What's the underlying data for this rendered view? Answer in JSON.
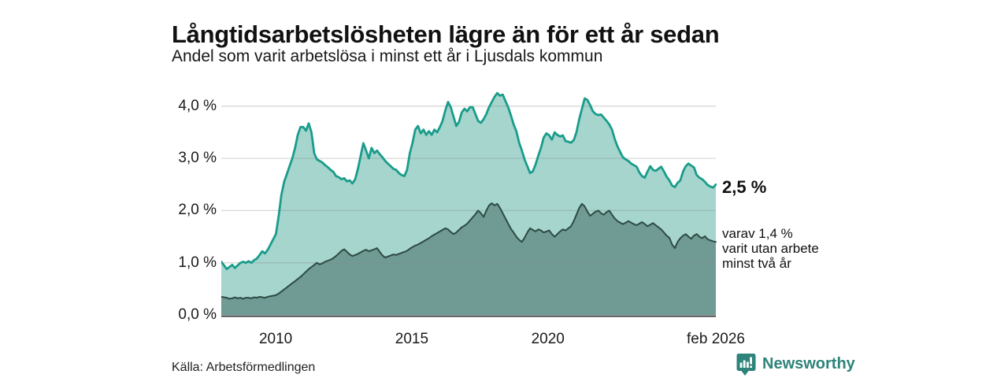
{
  "header": {
    "title": "Långtidsarbetslösheten lägre än för ett år sedan",
    "subtitle": "Andel som varit arbetslösa i minst ett år i Ljusdals kommun"
  },
  "chart_data": {
    "type": "area",
    "title": "Långtidsarbetslösheten lägre än för ett år sedan",
    "subtitle": "Andel som varit arbetslösa i minst ett år i Ljusdals kommun",
    "x_start": 2008.0,
    "x_end": 2026.17,
    "ylim": [
      0,
      4.525
    ],
    "grid": true,
    "y_ticks": [
      {
        "value": 4,
        "label": "4,0 %"
      },
      {
        "value": 3,
        "label": "3,0 %"
      },
      {
        "value": 2,
        "label": "2,0 %"
      },
      {
        "value": 1,
        "label": "1,0 %"
      },
      {
        "value": 0,
        "label": "0,0 %"
      }
    ],
    "x_ticks": [
      {
        "value": 2010,
        "label": "2010"
      },
      {
        "value": 2015,
        "label": "2015"
      },
      {
        "value": 2020,
        "label": "2020"
      },
      {
        "value": 2026.17,
        "label": "feb 2026"
      }
    ],
    "series": [
      {
        "name": "Andel arbetslösa minst ett år",
        "line_color": "#1a9c8b",
        "fill_color": "#a5d5cd",
        "end_value": "2,5 %",
        "values": [
          1.02,
          0.95,
          0.88,
          0.92,
          0.96,
          0.9,
          0.95,
          1.0,
          1.02,
          1.0,
          1.03,
          1.0,
          1.05,
          1.08,
          1.15,
          1.22,
          1.18,
          1.25,
          1.35,
          1.45,
          1.55,
          1.9,
          2.3,
          2.55,
          2.7,
          2.85,
          3.0,
          3.2,
          3.45,
          3.6,
          3.6,
          3.53,
          3.67,
          3.5,
          3.1,
          2.98,
          2.95,
          2.92,
          2.87,
          2.83,
          2.78,
          2.74,
          2.66,
          2.64,
          2.6,
          2.62,
          2.56,
          2.58,
          2.52,
          2.6,
          2.8,
          3.05,
          3.29,
          3.15,
          3.0,
          3.2,
          3.1,
          3.15,
          3.08,
          3.02,
          2.95,
          2.9,
          2.85,
          2.8,
          2.78,
          2.72,
          2.68,
          2.66,
          2.78,
          3.1,
          3.3,
          3.55,
          3.62,
          3.48,
          3.55,
          3.45,
          3.52,
          3.45,
          3.55,
          3.5,
          3.6,
          3.72,
          3.92,
          4.08,
          3.98,
          3.8,
          3.62,
          3.7,
          3.88,
          3.95,
          3.9,
          3.98,
          3.98,
          3.85,
          3.72,
          3.68,
          3.75,
          3.85,
          3.98,
          4.08,
          4.18,
          4.25,
          4.2,
          4.22,
          4.1,
          3.98,
          3.82,
          3.65,
          3.52,
          3.3,
          3.15,
          2.98,
          2.85,
          2.72,
          2.75,
          2.88,
          3.05,
          3.2,
          3.4,
          3.48,
          3.44,
          3.36,
          3.5,
          3.45,
          3.42,
          3.44,
          3.33,
          3.32,
          3.3,
          3.35,
          3.5,
          3.75,
          3.95,
          4.15,
          4.12,
          4.02,
          3.9,
          3.85,
          3.83,
          3.84,
          3.78,
          3.72,
          3.65,
          3.55,
          3.37,
          3.23,
          3.12,
          3.02,
          2.98,
          2.95,
          2.9,
          2.87,
          2.84,
          2.73,
          2.66,
          2.63,
          2.75,
          2.85,
          2.78,
          2.76,
          2.8,
          2.84,
          2.75,
          2.65,
          2.58,
          2.48,
          2.45,
          2.53,
          2.58,
          2.75,
          2.85,
          2.9,
          2.86,
          2.83,
          2.68,
          2.63,
          2.6,
          2.55,
          2.49,
          2.46,
          2.44,
          2.5
        ]
      },
      {
        "name": "varav utan arbete minst två år",
        "line_color": "#2d4a43",
        "fill_color": "#6f9b94",
        "end_value": "1,4 %",
        "values": [
          0.35,
          0.34,
          0.33,
          0.31,
          0.32,
          0.34,
          0.32,
          0.33,
          0.31,
          0.33,
          0.33,
          0.32,
          0.34,
          0.33,
          0.35,
          0.34,
          0.33,
          0.35,
          0.36,
          0.37,
          0.38,
          0.41,
          0.45,
          0.49,
          0.53,
          0.57,
          0.61,
          0.65,
          0.69,
          0.73,
          0.78,
          0.83,
          0.88,
          0.92,
          0.96,
          1.0,
          0.97,
          0.99,
          1.02,
          1.04,
          1.06,
          1.09,
          1.13,
          1.18,
          1.23,
          1.26,
          1.21,
          1.16,
          1.13,
          1.15,
          1.17,
          1.2,
          1.23,
          1.25,
          1.22,
          1.24,
          1.26,
          1.28,
          1.21,
          1.14,
          1.1,
          1.12,
          1.14,
          1.16,
          1.15,
          1.17,
          1.19,
          1.21,
          1.23,
          1.27,
          1.3,
          1.33,
          1.35,
          1.38,
          1.41,
          1.44,
          1.47,
          1.51,
          1.54,
          1.57,
          1.6,
          1.63,
          1.66,
          1.64,
          1.59,
          1.55,
          1.58,
          1.63,
          1.68,
          1.71,
          1.75,
          1.81,
          1.87,
          1.93,
          2.0,
          1.95,
          1.88,
          2.0,
          2.1,
          2.14,
          2.1,
          2.13,
          2.05,
          1.95,
          1.85,
          1.75,
          1.65,
          1.58,
          1.5,
          1.44,
          1.4,
          1.48,
          1.58,
          1.66,
          1.63,
          1.6,
          1.64,
          1.62,
          1.58,
          1.6,
          1.62,
          1.55,
          1.5,
          1.55,
          1.6,
          1.64,
          1.62,
          1.66,
          1.7,
          1.8,
          1.92,
          2.05,
          2.13,
          2.08,
          1.98,
          1.9,
          1.94,
          1.98,
          2.0,
          1.95,
          1.92,
          1.97,
          2.0,
          1.92,
          1.85,
          1.8,
          1.77,
          1.74,
          1.77,
          1.8,
          1.77,
          1.74,
          1.72,
          1.75,
          1.78,
          1.74,
          1.7,
          1.73,
          1.76,
          1.72,
          1.68,
          1.64,
          1.58,
          1.52,
          1.48,
          1.35,
          1.28,
          1.4,
          1.47,
          1.52,
          1.55,
          1.5,
          1.46,
          1.52,
          1.55,
          1.5,
          1.47,
          1.51,
          1.45,
          1.43,
          1.41,
          1.4
        ]
      }
    ],
    "annotations": {
      "end_value_label": "2,5 %",
      "sub_label_lines": [
        "varav 1,4 %",
        "varit utan arbete",
        "minst två år"
      ]
    },
    "legend_position": "none"
  },
  "footer": {
    "source": "Källa: Arbetsförmedlingen",
    "brand": "Newsworthy"
  },
  "colors": {
    "accent_teal": "#1a9c8b",
    "light_fill": "#a5d5cd",
    "dark_fill": "#6f9b94",
    "dark_line": "#2d4a43",
    "grid": "#d9d9d9",
    "axis": "#3c3c3c",
    "brand_teal": "#2e837a",
    "text": "#111111"
  }
}
